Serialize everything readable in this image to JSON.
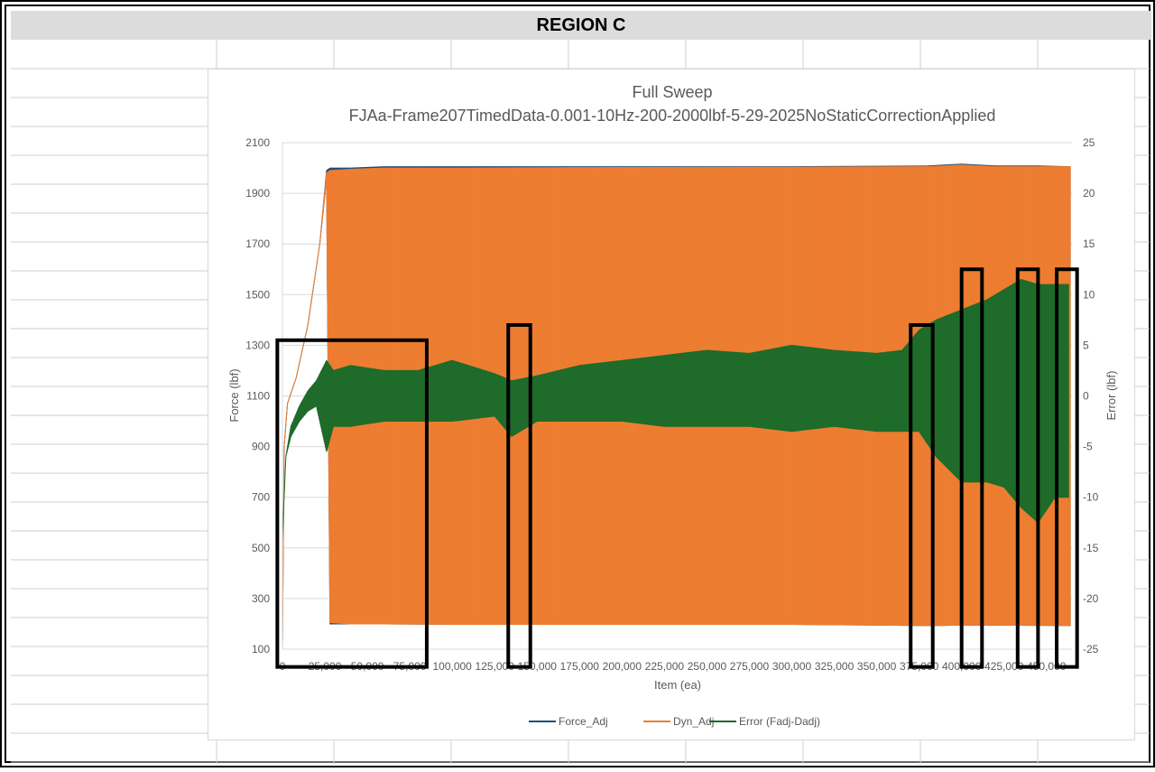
{
  "header": {
    "title": "REGION C"
  },
  "colors": {
    "force_adj": "#1f4e79",
    "dyn_adj": "#ed7d31",
    "error": "#1e6b2a",
    "highlight_box": "#000000"
  },
  "chart_data": {
    "type": "line",
    "title": "Full Sweep",
    "subtitle": "FJAa-Frame207TimedData-0.001-10Hz-200-2000lbf-5-29-2025NoStaticCorrectionApplied",
    "xlabel": "Item (ea)",
    "ylabel": "Force (lbf)",
    "y2label": "Error (lbf)",
    "xlim": [
      0,
      465000
    ],
    "ylim": [
      100,
      2100
    ],
    "y2lim": [
      -25,
      25
    ],
    "x_ticks": [
      "0",
      "25,000",
      "50,000",
      "75,000",
      "100,000",
      "125,000",
      "150,000",
      "175,000",
      "200,000",
      "225,000",
      "250,000",
      "275,000",
      "300,000",
      "325,000",
      "350,000",
      "375,000",
      "400,000",
      "425,000",
      "450,000"
    ],
    "y_ticks": [
      "100",
      "300",
      "500",
      "700",
      "900",
      "1100",
      "1300",
      "1500",
      "1700",
      "1900",
      "2100"
    ],
    "y2_ticks": [
      "-25",
      "-20",
      "-15",
      "-10",
      "-5",
      "0",
      "5",
      "10",
      "15",
      "20",
      "25"
    ],
    "grid": "horizontal",
    "legend_position": "bottom",
    "series": [
      {
        "name": "Force_Adj",
        "axis": "left",
        "envelope_x": [
          0,
          1000,
          3000,
          8000,
          15000,
          22000,
          26000,
          28000,
          40000,
          60000,
          100000,
          200000,
          300000,
          380000,
          400000,
          420000,
          445000,
          464000
        ],
        "envelope_upper": [
          100,
          900,
          1070,
          1170,
          1380,
          1700,
          1990,
          2000,
          2000,
          2005,
          2005,
          2005,
          2005,
          2008,
          2015,
          2008,
          2008,
          2005
        ],
        "envelope_lower": [
          100,
          900,
          1070,
          1170,
          1380,
          1700,
          1960,
          200,
          200,
          200,
          198,
          198,
          198,
          193,
          195,
          195,
          194,
          193
        ]
      },
      {
        "name": "Dyn_Adj",
        "axis": "left",
        "envelope_x": [
          0,
          1000,
          3000,
          8000,
          15000,
          22000,
          26000,
          28000,
          40000,
          60000,
          100000,
          200000,
          300000,
          380000,
          400000,
          420000,
          445000,
          464000
        ],
        "envelope_upper": [
          100,
          900,
          1070,
          1170,
          1380,
          1700,
          1980,
          1990,
          1995,
          2000,
          2000,
          2002,
          2003,
          2005,
          2012,
          2005,
          2005,
          2005
        ],
        "envelope_lower": [
          100,
          900,
          1070,
          1170,
          1380,
          1700,
          1950,
          205,
          200,
          200,
          198,
          198,
          198,
          193,
          195,
          195,
          194,
          193
        ]
      },
      {
        "name": "Error (Fadj-Dadj)",
        "axis": "right",
        "envelope_x": [
          0,
          2000,
          5000,
          10000,
          15000,
          20000,
          26000,
          30000,
          40000,
          60000,
          80000,
          100000,
          125000,
          135000,
          150000,
          175000,
          200000,
          225000,
          250000,
          275000,
          300000,
          325000,
          350000,
          365000,
          375000,
          385000,
          400000,
          415000,
          425000,
          435000,
          445000,
          455000,
          463000
        ],
        "envelope_upper": [
          -14,
          -6,
          -3,
          -1,
          0.5,
          1.5,
          3.5,
          2.5,
          3,
          2.5,
          2.5,
          3.5,
          2.2,
          1.5,
          2,
          3,
          3.5,
          4,
          4.5,
          4.2,
          5,
          4.5,
          4.2,
          4.5,
          6.5,
          7.5,
          8.5,
          9.5,
          10.5,
          11.5,
          11,
          11,
          11
        ],
        "envelope_lower": [
          -14,
          -6,
          -4,
          -2.5,
          -1.5,
          -1,
          -5.5,
          -3,
          -3,
          -2.5,
          -2.5,
          -2.5,
          -2,
          -4,
          -2.5,
          -2.5,
          -2.5,
          -3,
          -3,
          -3,
          -3.5,
          -3,
          -3.5,
          -3.5,
          -3.5,
          -6,
          -8.5,
          -8.5,
          -9,
          -11,
          -12.5,
          -10,
          -10
        ]
      }
    ],
    "highlight_boxes": [
      {
        "x_range": [
          -3000,
          85000
        ],
        "y_range": [
          1320,
          30
        ]
      },
      {
        "x_range": [
          133000,
          146000
        ],
        "y_range": [
          1380,
          30
        ]
      },
      {
        "x_range": [
          370000,
          383000
        ],
        "y_range": [
          1380,
          30
        ]
      },
      {
        "x_range": [
          400000,
          412000
        ],
        "y_range": [
          1600,
          30
        ]
      },
      {
        "x_range": [
          433000,
          445000
        ],
        "y_range": [
          1600,
          30
        ]
      },
      {
        "x_range": [
          456000,
          468000
        ],
        "y_range": [
          1600,
          30
        ]
      }
    ]
  }
}
